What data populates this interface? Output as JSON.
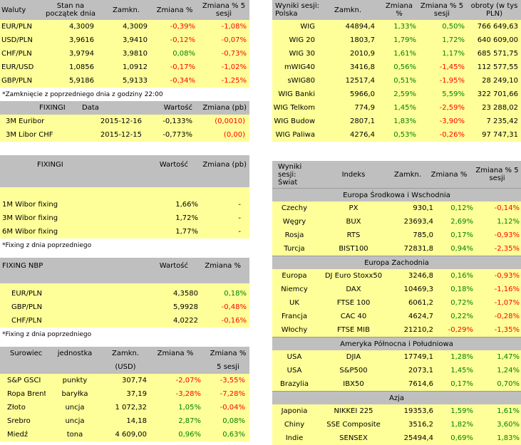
{
  "waluty": {
    "headers": [
      "Waluty",
      "Stan na początek dnia",
      "Zamkn.",
      "Zmiana %",
      "Zmiana % 5 sesji"
    ],
    "rows": [
      [
        "EUR/PLN",
        "4,3009",
        "4,3009",
        "-0,39%",
        "-1,08%"
      ],
      [
        "USD/PLN",
        "3,9616",
        "3,9410",
        "-0,12%",
        "-0,07%"
      ],
      [
        "CHF/PLN",
        "3,9794",
        "3,9810",
        "0,08%",
        "-0,73%"
      ],
      [
        "EUR/USD",
        "1,0856",
        "1,0912",
        "-0,17%",
        "-1,02%"
      ],
      [
        "GBP/PLN",
        "5,9186",
        "5,9133",
        "-0,34%",
        "-1,25%"
      ]
    ],
    "note": "*Zamknięcie z poprzedniego dnia z godziny 22:00"
  },
  "fixingi1": {
    "headers": [
      "FIXINGI",
      "Data",
      "Wartość",
      "Zmiana (pb)"
    ],
    "rows": [
      [
        "3M Euribor",
        "2015-12-16",
        "-0,133%",
        "(0,0010)"
      ],
      [
        "3M Libor CHF",
        "2015-12-15",
        "-0,773%",
        "(0,00)"
      ]
    ]
  },
  "fixingi2": {
    "headers": [
      "FIXINGI",
      "Wartość",
      "Zmiana (pb)"
    ],
    "rows": [
      [
        "1M Wibor fixing",
        "1,66%",
        "-"
      ],
      [
        "3M Wibor fixing",
        "1,72%",
        "-"
      ],
      [
        "6M Wibor fixing",
        "1,77%",
        "-"
      ]
    ],
    "note": "*Fixing z dnia poprzedniego"
  },
  "nbp": {
    "headers": [
      "FIXING NBP",
      "Wartość",
      "Zmiana %"
    ],
    "rows": [
      [
        "EUR/PLN",
        "4,3580",
        "0,18%"
      ],
      [
        "GBP/PLN",
        "5,9928",
        "-0,48%"
      ],
      [
        "CHF/PLN",
        "4,0222",
        "-0,16%"
      ]
    ],
    "note": "*Fixing z dnia poprzedniego"
  },
  "surowce": {
    "headers": [
      "Surowiec",
      "jednostka",
      "Zamkn.",
      "Zmiana %",
      "Zmiana %"
    ],
    "headers2": [
      "(USD)",
      "5 sesji"
    ],
    "rows": [
      [
        "S&P GSCI",
        "punkty",
        "307,74",
        "-2,07%",
        "-3,55%"
      ],
      [
        "Ropa Brent",
        "baryłka",
        "37,19",
        "-3,28%",
        "-7,28%"
      ],
      [
        "Złoto",
        "uncja",
        "1 072,32",
        "1,05%",
        "-0,04%"
      ],
      [
        "Srebro",
        "uncja",
        "14,18",
        "2,87%",
        "0,08%"
      ],
      [
        "Miedź",
        "tona",
        "4 609,00",
        "0,96%",
        "0,63%"
      ]
    ]
  },
  "polska": {
    "headers": [
      "Wyniki sesji: Polska",
      "Zamkn.",
      "Zmiana %",
      "Zmiana % 5 sesji",
      "obroty (w tys PLN)"
    ],
    "rows": [
      [
        "WIG",
        "44894,4",
        "1,33%",
        "0,50%",
        "766 649,63"
      ],
      [
        "WIG 20",
        "1803,7",
        "1,79%",
        "1,72%",
        "640 609,00"
      ],
      [
        "WIG 30",
        "2010,9",
        "1,61%",
        "1,17%",
        "685 571,75"
      ],
      [
        "mWIG40",
        "3416,8",
        "0,56%",
        "-1,45%",
        "112 577,55"
      ],
      [
        "sWIG80",
        "12517,4",
        "0,51%",
        "-1,95%",
        "28 249,10"
      ],
      [
        "WIG Banki",
        "5966,0",
        "2,59%",
        "5,59%",
        "322 701,66"
      ],
      [
        "WIG Telkom",
        "774,9",
        "1,45%",
        "-2,59%",
        "23 288,02"
      ],
      [
        "WIG Budow",
        "2807,1",
        "1,83%",
        "-3,90%",
        "7 235,42"
      ],
      [
        "WIG Paliwa",
        "4276,4",
        "0,53%",
        "-0,26%",
        "97 747,31"
      ]
    ]
  },
  "swiat": {
    "headers": [
      "Wyniki sesji: Świat",
      "Indeks",
      "Zamkn.",
      "Zmiana %",
      "Zmiana % 5 sesji"
    ],
    "sections": [
      {
        "title": "Europa Środkowa i Wschodnia",
        "rows": [
          [
            "Czechy",
            "PX",
            "930,1",
            "0,12%",
            "-0,14%"
          ],
          [
            "Węgry",
            "BUX",
            "23693,4",
            "2,69%",
            "1,12%"
          ],
          [
            "Rosja",
            "RTS",
            "785,0",
            "0,17%",
            "-0,93%"
          ],
          [
            "Turcja",
            "BIST100",
            "72831,8",
            "0,94%",
            "-2,35%"
          ]
        ]
      },
      {
        "title": "Europa Zachodnia",
        "rows": [
          [
            "Europa",
            "DJ Euro Stoxx50",
            "3246,8",
            "0,16%",
            "-0,93%"
          ],
          [
            "Niemcy",
            "DAX",
            "10469,3",
            "0,18%",
            "-1,16%"
          ],
          [
            "UK",
            "FTSE 100",
            "6061,2",
            "0,72%",
            "-1,07%"
          ],
          [
            "Francja",
            "CAC 40",
            "4624,7",
            "0,22%",
            "-0,28%"
          ],
          [
            "Włochy",
            "FTSE MIB",
            "21210,2",
            "-0,29%",
            "-1,35%"
          ]
        ]
      },
      {
        "title": "Ameryka Północna i Południowa",
        "rows": [
          [
            "USA",
            "DJIA",
            "17749,1",
            "1,28%",
            "1,47%"
          ],
          [
            "USA",
            "S&P500",
            "2073,1",
            "1,45%",
            "1,24%"
          ],
          [
            "Brazylia",
            "IBX50",
            "7614,6",
            "0,17%",
            "0,70%"
          ]
        ]
      },
      {
        "title": "Azja",
        "rows": [
          [
            "Japonia",
            "NIKKEI 225",
            "19353,6",
            "1,59%",
            "1,61%"
          ],
          [
            "Chiny",
            "SSE Composite",
            "3516,2",
            "1,82%",
            "3,60%"
          ],
          [
            "Indie",
            "SENSEX",
            "25494,4",
            "0,69%",
            "1,83%"
          ]
        ]
      }
    ]
  }
}
